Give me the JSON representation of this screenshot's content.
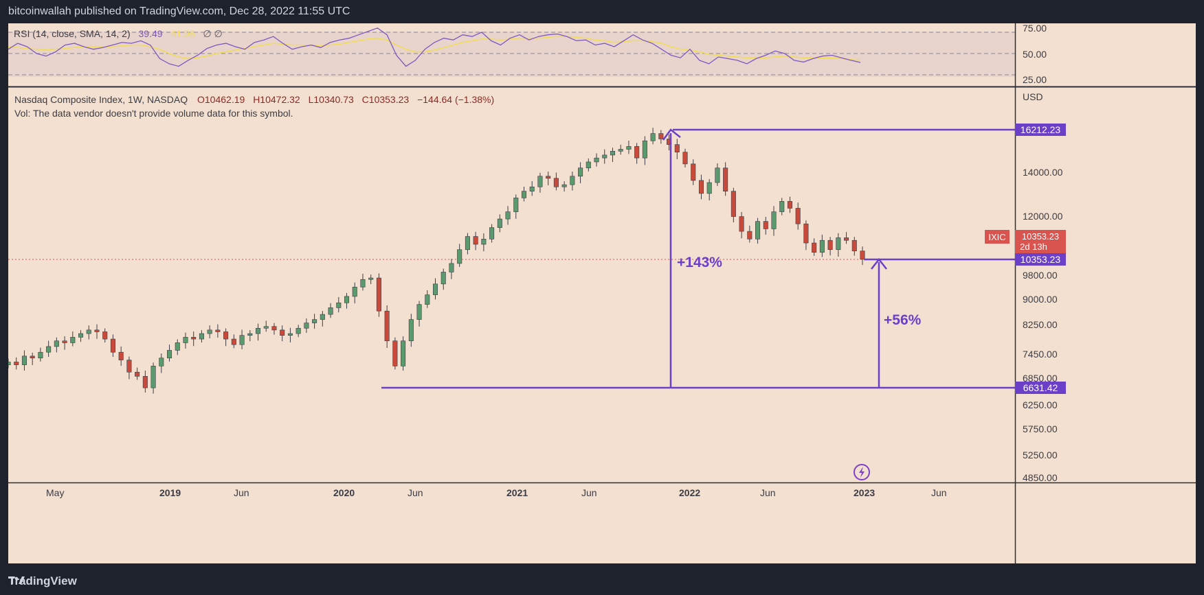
{
  "header": {
    "publish_line": "bitcoinwallah published on TradingView.com, Dec 28, 2022 11:55 UTC"
  },
  "footer": {
    "brand": "TradingView"
  },
  "colors": {
    "up": "#5b9a6e",
    "down": "#c94a3b",
    "rsi": "#7e57c2",
    "sma": "#f0dc55",
    "annotation": "#6c3fc9",
    "bg": "#f3e0d0"
  },
  "rsi_panel": {
    "legend": "RSI (14, close, SMA, 14, 2)",
    "rsi_value": "39.49",
    "sma_value": "41.96",
    "extra": "∅  ∅",
    "ticks": [
      "75.00",
      "50.00",
      "25.00"
    ]
  },
  "main_panel": {
    "legend_line1": "Nasdaq Composite Index, 1W, NASDAQ",
    "open": "O10462.19",
    "high": "H10472.32",
    "low": "L10340.73",
    "close": "C10353.23",
    "change": "−144.64 (−1.38%)",
    "legend_line2": "Vol: The data vendor doesn't provide volume data for this symbol.",
    "currency": "USD",
    "price_ticks": [
      "14000.00",
      "12000.00",
      "9800.00",
      "9000.00",
      "8250.00",
      "7450.00",
      "6850.00",
      "6250.00",
      "5750.00",
      "5250.00",
      "4850.00"
    ],
    "price_labels": {
      "high_line": "16212.23",
      "current_line": "10353.23",
      "low_line": "6631.42"
    },
    "symbol_tag": {
      "symbol": "IXIC",
      "price": "10353.23",
      "countdown": "2d 13h"
    },
    "annotations": {
      "rise": "+143%",
      "rebound": "+56%"
    }
  },
  "time_axis": [
    "May",
    "2019",
    "Jun",
    "2020",
    "Jun",
    "2021",
    "Jun",
    "2022",
    "Jun",
    "2023",
    "Jun"
  ],
  "chart_data": [
    {
      "type": "line",
      "title": "RSI (14, close, SMA, 14, 2)",
      "ylim": [
        20,
        80
      ],
      "series": [
        {
          "name": "RSI",
          "values": [
            55,
            62,
            58,
            50,
            47,
            52,
            60,
            62,
            58,
            55,
            57,
            60,
            63,
            62,
            65,
            60,
            44,
            38,
            35,
            42,
            48,
            56,
            60,
            62,
            58,
            55,
            63,
            66,
            70,
            62,
            55,
            58,
            60,
            57,
            63,
            66,
            68,
            72,
            76,
            80,
            72,
            48,
            35,
            42,
            55,
            63,
            68,
            66,
            72,
            70,
            75,
            65,
            60,
            68,
            72,
            66,
            70,
            72,
            73,
            70,
            65,
            66,
            60,
            62,
            58,
            65,
            72,
            66,
            62,
            55,
            48,
            45,
            55,
            42,
            38,
            46,
            44,
            42,
            38,
            44,
            48,
            53,
            50,
            42,
            40,
            44,
            47,
            48,
            45,
            42,
            39.49
          ]
        },
        {
          "name": "SMA",
          "values": [
            58,
            57,
            56,
            55,
            54,
            55,
            56,
            57,
            58,
            58,
            58,
            58,
            59,
            60,
            60,
            58,
            55,
            50,
            46,
            44,
            45,
            47,
            50,
            52,
            54,
            56,
            58,
            60,
            62,
            61,
            60,
            60,
            59,
            59,
            60,
            61,
            63,
            65,
            67,
            68,
            66,
            60,
            55,
            52,
            52,
            54,
            57,
            60,
            63,
            65,
            67,
            67,
            66,
            67,
            68,
            68,
            68,
            69,
            70,
            70,
            69,
            68,
            66,
            65,
            63,
            64,
            65,
            65,
            64,
            62,
            58,
            55,
            54,
            52,
            49,
            48,
            47,
            46,
            45,
            45,
            45,
            46,
            47,
            46,
            45,
            45,
            45,
            45,
            44,
            43,
            41.96
          ]
        }
      ]
    },
    {
      "type": "line",
      "title": "Nasdaq Composite Index, 1W, NASDAQ",
      "ylabel": "USD",
      "scale": "log",
      "ylim": [
        4850,
        16212.23
      ],
      "x_start": "2018-03-26",
      "x_interval_days": 14,
      "values": [
        7250,
        7180,
        7400,
        7350,
        7500,
        7650,
        7800,
        7750,
        7900,
        8000,
        8100,
        8050,
        7850,
        7500,
        7300,
        7000,
        6900,
        6630,
        7150,
        7350,
        7550,
        7750,
        7900,
        7850,
        8000,
        8100,
        8050,
        7850,
        7700,
        7950,
        8000,
        8150,
        8200,
        8100,
        7950,
        8000,
        8150,
        8300,
        8400,
        8550,
        8750,
        8900,
        9100,
        9400,
        9650,
        9700,
        8650,
        7800,
        7150,
        7800,
        8400,
        8850,
        9150,
        9500,
        9900,
        10200,
        10700,
        11200,
        10900,
        11100,
        11550,
        11900,
        12200,
        12800,
        13100,
        13300,
        13800,
        13700,
        13300,
        13400,
        13800,
        14200,
        14500,
        14700,
        14850,
        15050,
        15150,
        15300,
        14700,
        15600,
        16000,
        15700,
        15400,
        15000,
        14400,
        13600,
        13000,
        13500,
        14200,
        13100,
        12000,
        11400,
        11100,
        11800,
        11500,
        12200,
        12650,
        12350,
        11700,
        10950,
        10600,
        11050,
        10700,
        11150,
        11050,
        10650,
        10353.23
      ]
    }
  ]
}
